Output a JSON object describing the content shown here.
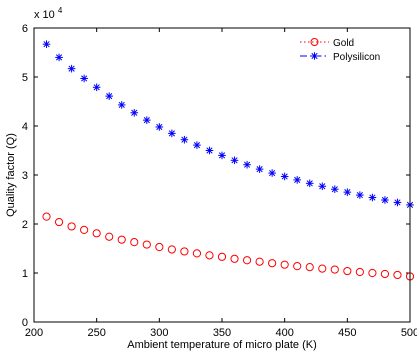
{
  "chart_data": {
    "type": "scatter",
    "xlabel": "Ambient temperature of micro plate (K)",
    "ylabel": "Quality factor (Q)",
    "y_multiplier_label": "x 10",
    "y_multiplier_exponent": "4",
    "xlim": [
      200,
      500
    ],
    "ylim": [
      0,
      6
    ],
    "x_ticks": [
      200,
      250,
      300,
      350,
      400,
      450,
      500
    ],
    "y_ticks": [
      0,
      1,
      2,
      3,
      4,
      5,
      6
    ],
    "grid": false,
    "legend_position": "top-right",
    "x": [
      210,
      220,
      230,
      240,
      250,
      260,
      270,
      280,
      290,
      300,
      310,
      320,
      330,
      340,
      350,
      360,
      370,
      380,
      390,
      400,
      410,
      420,
      430,
      440,
      450,
      460,
      470,
      480,
      490,
      500
    ],
    "series": [
      {
        "name": "Gold",
        "color": "#ff0000",
        "marker": "circle",
        "line_style": "dotted",
        "values": [
          2.15,
          2.04,
          1.95,
          1.88,
          1.81,
          1.74,
          1.68,
          1.63,
          1.58,
          1.53,
          1.48,
          1.44,
          1.4,
          1.36,
          1.33,
          1.29,
          1.26,
          1.23,
          1.2,
          1.17,
          1.14,
          1.12,
          1.09,
          1.07,
          1.04,
          1.02,
          1.0,
          0.98,
          0.96,
          0.93
        ]
      },
      {
        "name": "Polysilicon",
        "color": "#0000ff",
        "marker": "star",
        "line_style": "dashdot",
        "values": [
          5.67,
          5.4,
          5.17,
          4.97,
          4.79,
          4.61,
          4.43,
          4.27,
          4.12,
          3.98,
          3.85,
          3.72,
          3.61,
          3.5,
          3.4,
          3.3,
          3.21,
          3.12,
          3.04,
          2.97,
          2.9,
          2.83,
          2.77,
          2.71,
          2.65,
          2.59,
          2.54,
          2.49,
          2.44,
          2.39
        ]
      }
    ]
  }
}
